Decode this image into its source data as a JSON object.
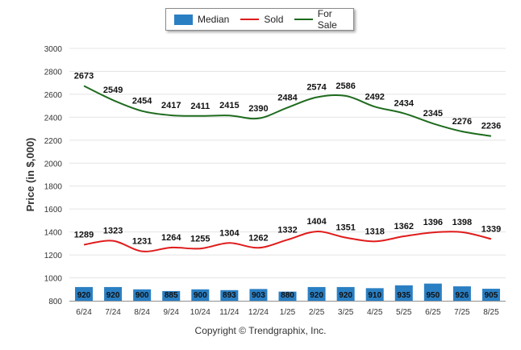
{
  "chart_data": {
    "type": "line",
    "categories": [
      "6/24",
      "7/24",
      "8/24",
      "9/24",
      "10/24",
      "11/24",
      "12/24",
      "1/25",
      "2/25",
      "3/25",
      "4/25",
      "5/25",
      "6/25",
      "7/25",
      "8/25"
    ],
    "series": [
      {
        "name": "Median",
        "type": "bar",
        "color": "#2a7fc3",
        "values": [
          920,
          920,
          900,
          885,
          900,
          893,
          903,
          880,
          920,
          920,
          910,
          935,
          950,
          926,
          905
        ]
      },
      {
        "name": "Sold",
        "type": "line",
        "color": "#e01b1b",
        "values": [
          1289,
          1323,
          1231,
          1264,
          1255,
          1304,
          1262,
          1332,
          1404,
          1351,
          1318,
          1362,
          1396,
          1398,
          1339
        ]
      },
      {
        "name": "For Sale",
        "type": "line",
        "color": "#1e6b1e",
        "values": [
          2673,
          2549,
          2454,
          2417,
          2411,
          2415,
          2390,
          2484,
          2574,
          2586,
          2492,
          2434,
          2345,
          2276,
          2236
        ]
      }
    ],
    "ylabel": "Price (in $,000)",
    "xlabel": "",
    "ylim": [
      800,
      3000
    ],
    "yticks": [
      800,
      1000,
      1200,
      1400,
      1600,
      1800,
      2000,
      2200,
      2400,
      2600,
      2800,
      3000
    ],
    "grid": true,
    "legend_position": "top-center"
  },
  "footer": {
    "copyright": "Copyright © Trendgraphix, Inc."
  }
}
